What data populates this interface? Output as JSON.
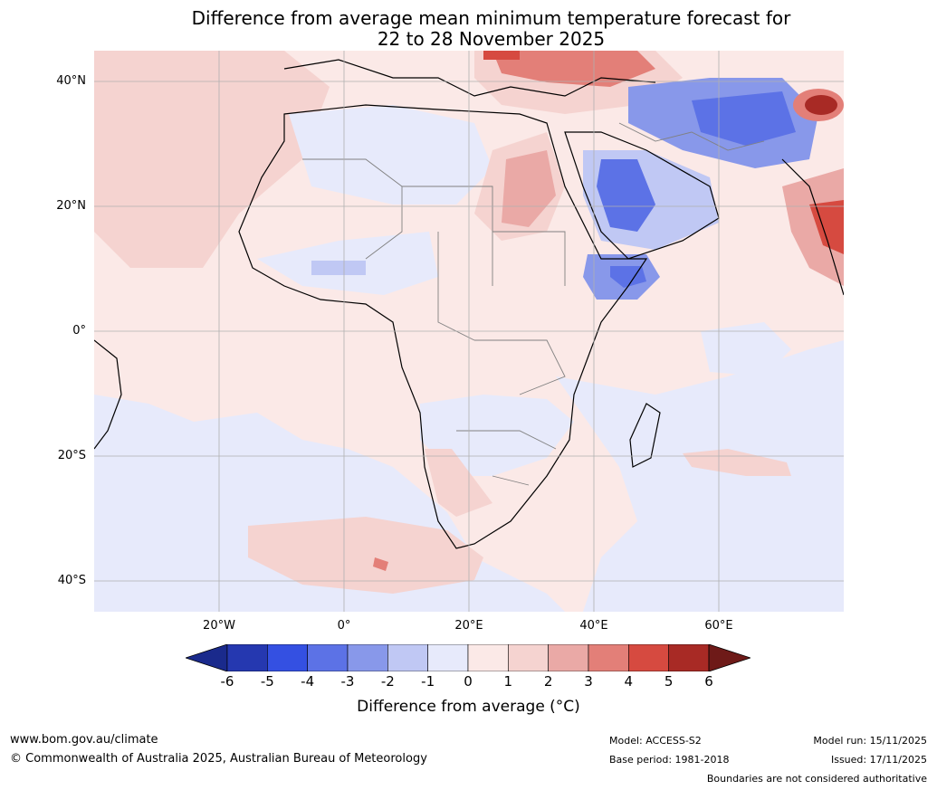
{
  "title": {
    "line1": "Difference from average mean minimum temperature forecast for",
    "line2": "22 to 28 November 2025"
  },
  "map": {
    "region": "Africa and Middle East",
    "lat_labels": [
      "40°N",
      "20°N",
      "0°",
      "20°S",
      "40°S"
    ],
    "lon_labels": [
      "20°W",
      "0°",
      "20°E",
      "40°E",
      "60°E"
    ]
  },
  "colorbar": {
    "ticks": [
      "-6",
      "-5",
      "-4",
      "-3",
      "-2",
      "-1",
      "0",
      "1",
      "2",
      "3",
      "4",
      "5",
      "6"
    ],
    "colors": {
      "below_min": "#1a2a8c",
      "-6_-5": "#2538b0",
      "-5_-4": "#3450e2",
      "-4_-3": "#5c72e6",
      "-3_-2": "#8898ea",
      "-2_-1": "#c0c8f4",
      "-1_0": "#e7eafb",
      "0_1": "#fbe9e7",
      "1_2": "#f5d3d0",
      "2_3": "#eaa9a6",
      "3_4": "#e37f78",
      "4_5": "#d64a40",
      "5_6": "#a82a25",
      "above_max": "#6e1a18"
    },
    "title": "Difference from average (°C)"
  },
  "footer": {
    "website": "www.bom.gov.au/climate",
    "copyright": "© Commonwealth of Australia 2025, Australian Bureau of Meteorology",
    "model": "Model: ACCESS-S2",
    "base_period": "Base period: 1981-2018",
    "model_run": "Model run: 15/11/2025",
    "issued": "Issued: 17/11/2025",
    "disclaimer": "Boundaries are not considered authoritative"
  }
}
